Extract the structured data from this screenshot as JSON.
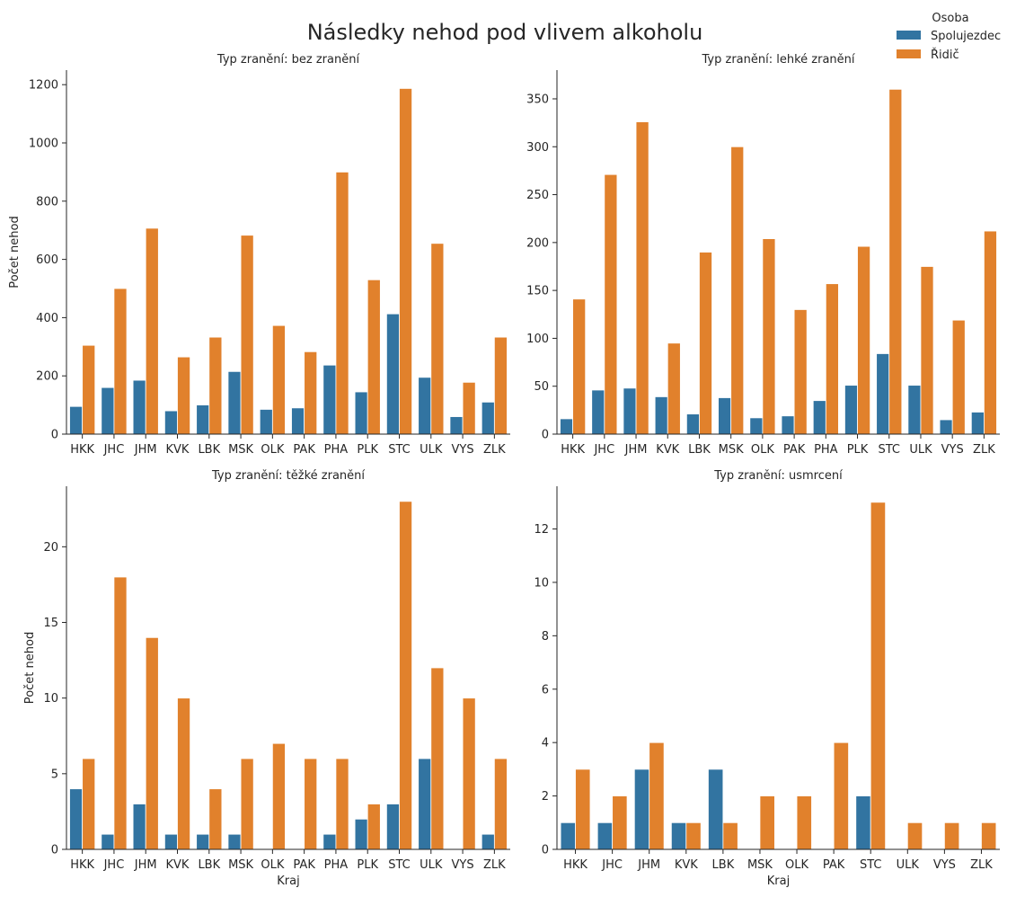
{
  "figure": {
    "title": "Následky nehod pod vlivem alkoholu"
  },
  "legend": {
    "title": "Osoba",
    "position": "top-right",
    "items": [
      {
        "label": "Spolujezdec",
        "color": "#1f77b4"
      },
      {
        "label": "Řidič",
        "color": "#ff7f0e"
      }
    ]
  },
  "colors": {
    "Spolujezdec": "#3274a1",
    "Řidič": "#e1812c",
    "axis": "#262626"
  },
  "chart_data": [
    {
      "type": "bar",
      "title": "Typ zranění: bez zranění",
      "xlabel": "",
      "ylabel": "Počet nehod",
      "categories": [
        "HKK",
        "JHC",
        "JHM",
        "KVK",
        "LBK",
        "MSK",
        "OLK",
        "PAK",
        "PHA",
        "PLK",
        "STC",
        "ULK",
        "VYS",
        "ZLK"
      ],
      "ylim": [
        0,
        1250
      ],
      "yticks": [
        0,
        200,
        400,
        600,
        800,
        1000,
        1200
      ],
      "series": [
        {
          "name": "Spolujezdec",
          "values": [
            95,
            160,
            185,
            80,
            100,
            215,
            85,
            90,
            237,
            145,
            413,
            195,
            60,
            110
          ]
        },
        {
          "name": "Řidič",
          "values": [
            305,
            500,
            707,
            265,
            333,
            683,
            373,
            283,
            900,
            530,
            1187,
            655,
            178,
            333
          ]
        }
      ]
    },
    {
      "type": "bar",
      "title": "Typ zranění: lehké zranění",
      "xlabel": "",
      "ylabel": "",
      "categories": [
        "HKK",
        "JHC",
        "JHM",
        "KVK",
        "LBK",
        "MSK",
        "OLK",
        "PAK",
        "PHA",
        "PLK",
        "STC",
        "ULK",
        "VYS",
        "ZLK"
      ],
      "ylim": [
        0,
        380
      ],
      "yticks": [
        0,
        50,
        100,
        150,
        200,
        250,
        300,
        350
      ],
      "series": [
        {
          "name": "Spolujezdec",
          "values": [
            16,
            46,
            48,
            39,
            21,
            38,
            17,
            19,
            35,
            51,
            84,
            51,
            15,
            23
          ]
        },
        {
          "name": "Řidič",
          "values": [
            141,
            271,
            326,
            95,
            190,
            300,
            204,
            130,
            157,
            196,
            360,
            175,
            119,
            212
          ]
        }
      ]
    },
    {
      "type": "bar",
      "title": "Typ zranění: těžké zranění",
      "xlabel": "Kraj",
      "ylabel": "Počet nehod",
      "categories": [
        "HKK",
        "JHC",
        "JHM",
        "KVK",
        "LBK",
        "MSK",
        "OLK",
        "PAK",
        "PHA",
        "PLK",
        "STC",
        "ULK",
        "VYS",
        "ZLK"
      ],
      "ylim": [
        0,
        24
      ],
      "yticks": [
        0,
        5,
        10,
        15,
        20
      ],
      "series": [
        {
          "name": "Spolujezdec",
          "values": [
            4,
            1,
            3,
            1,
            1,
            1,
            null,
            null,
            1,
            2,
            3,
            6,
            null,
            1
          ]
        },
        {
          "name": "Řidič",
          "values": [
            6,
            18,
            14,
            10,
            4,
            6,
            7,
            6,
            6,
            3,
            23,
            12,
            10,
            6
          ]
        }
      ]
    },
    {
      "type": "bar",
      "title": "Typ zranění: usmrcení",
      "xlabel": "Kraj",
      "ylabel": "",
      "categories": [
        "HKK",
        "JHC",
        "JHM",
        "KVK",
        "LBK",
        "MSK",
        "OLK",
        "PAK",
        "STC",
        "ULK",
        "VYS",
        "ZLK"
      ],
      "ylim": [
        0,
        13.6
      ],
      "yticks": [
        0,
        2,
        4,
        6,
        8,
        10,
        12
      ],
      "series": [
        {
          "name": "Spolujezdec",
          "values": [
            1,
            1,
            3,
            1,
            3,
            null,
            null,
            null,
            2,
            null,
            null,
            null
          ]
        },
        {
          "name": "Řidič",
          "values": [
            3,
            2,
            4,
            1,
            1,
            2,
            2,
            4,
            13,
            1,
            1,
            1
          ]
        }
      ]
    }
  ]
}
